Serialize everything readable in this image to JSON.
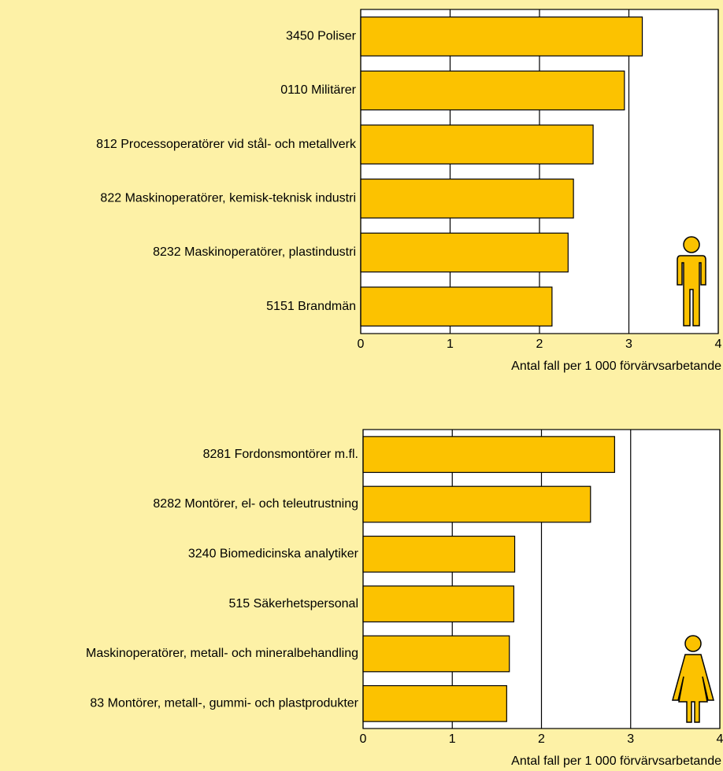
{
  "chart_data": [
    {
      "type": "barh",
      "categories": [
        "3450 Poliser",
        "0110 Militärer",
        "812 Processoperatörer vid stål- och metallverk",
        "822 Maskinoperatörer, kemisk-teknisk industri",
        "8232 Maskinoperatörer, plastindustri",
        "5151 Brandmän"
      ],
      "values": [
        3.15,
        2.95,
        2.6,
        2.38,
        2.32,
        2.14
      ],
      "color": "#fcc200",
      "xlim": [
        0,
        4
      ],
      "xticks": [
        0,
        1,
        2,
        3,
        4
      ],
      "grid": true,
      "x_label": "Antal fall per 1 000 förvärvsarbetande"
    },
    {
      "type": "barh",
      "categories": [
        "8281 Fordonsmontörer m.fl.",
        "8282 Montörer, el- och teleutrustning",
        "3240 Biomedicinska analytiker",
        "515 Säkerhetspersonal",
        "Maskinoperatörer, metall- och mineralbehandling",
        "83 Montörer, metall-, gummi- och plastprodukter"
      ],
      "values": [
        2.82,
        2.55,
        1.7,
        1.69,
        1.64,
        1.61
      ],
      "color": "#fcc200",
      "xlim": [
        0,
        4
      ],
      "xticks": [
        0,
        1,
        2,
        3,
        4
      ],
      "grid": true,
      "x_label": "Antal fall per 1 000 förvärvsarbetande"
    }
  ]
}
